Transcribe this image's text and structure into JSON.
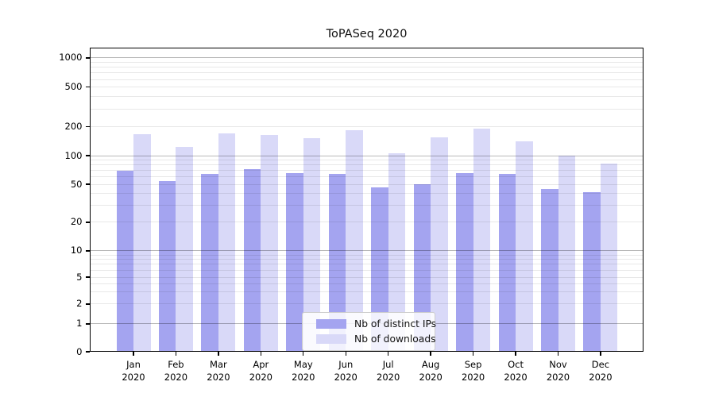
{
  "title": "ToPASeq 2020",
  "chart_data": {
    "type": "bar",
    "title": "ToPASeq 2020",
    "categories": [
      "Jan 2020",
      "Feb 2020",
      "Mar 2020",
      "Apr 2020",
      "May 2020",
      "Jun 2020",
      "Jul 2020",
      "Aug 2020",
      "Sep 2020",
      "Oct 2020",
      "Nov 2020",
      "Dec 2020"
    ],
    "months": [
      "Jan",
      "Feb",
      "Mar",
      "Apr",
      "May",
      "Jun",
      "Jul",
      "Aug",
      "Sep",
      "Oct",
      "Nov",
      "Dec"
    ],
    "year_label": "2020",
    "series": [
      {
        "name": "Nb of distinct IPs",
        "color": "#a4a4f0",
        "values": [
          70,
          54,
          64,
          72,
          65,
          64,
          46,
          50,
          66,
          64,
          45,
          41
        ]
      },
      {
        "name": "Nb of downloads",
        "color": "#d9d9f8",
        "values": [
          167,
          124,
          170,
          163,
          152,
          184,
          105,
          155,
          190,
          141,
          100,
          82
        ]
      }
    ],
    "yscale": "symlog",
    "yticks": [
      0,
      1,
      2,
      5,
      10,
      20,
      50,
      100,
      200,
      500,
      1000
    ],
    "ylim": [
      0,
      1200
    ],
    "xlabel": "",
    "ylabel": "",
    "grid": true,
    "legend_position": "lower center"
  },
  "colors": {
    "bar_ips": "#a4a4f0",
    "bar_downloads": "#d9d9f8",
    "grid_major": "rgba(0,0,0,0.28)",
    "grid_minor": "rgba(0,0,0,0.09)",
    "spine": "#000000",
    "background": "#ffffff"
  }
}
